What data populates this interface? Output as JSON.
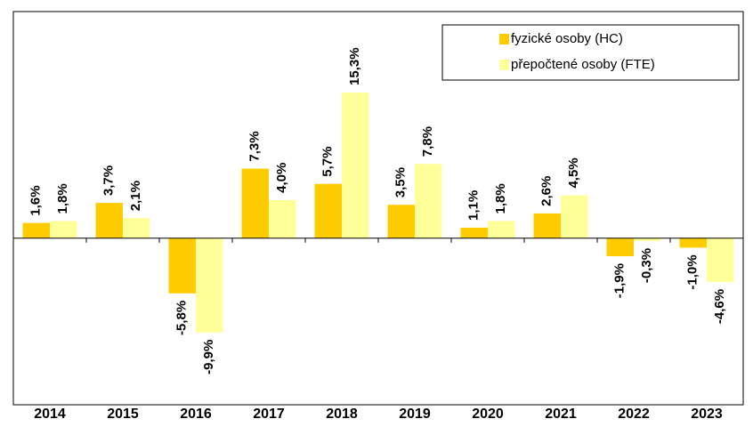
{
  "chart_data": {
    "type": "bar",
    "categories": [
      "2014",
      "2015",
      "2016",
      "2017",
      "2018",
      "2019",
      "2020",
      "2021",
      "2022",
      "2023"
    ],
    "series": [
      {
        "name": "fyzické osoby (HC)",
        "color": "#ffcc00",
        "values": [
          1.6,
          3.7,
          -5.8,
          7.3,
          5.7,
          3.5,
          1.1,
          2.6,
          -1.9,
          -1.0
        ],
        "value_labels": [
          "1,6%",
          "3,7%",
          "-5,8%",
          "7,3%",
          "5,7%",
          "3,5%",
          "1,1%",
          "2,6%",
          "-1,9%",
          "-1,0%"
        ]
      },
      {
        "name": "přepočtené osoby (FTE)",
        "color": "#ffff99",
        "values": [
          1.8,
          2.1,
          -9.9,
          4.0,
          15.3,
          7.8,
          1.8,
          4.5,
          -0.3,
          -4.6
        ],
        "value_labels": [
          "1,8%",
          "2,1%",
          "-9,9%",
          "4,0%",
          "15,3%",
          "7,8%",
          "1,8%",
          "4,5%",
          "-0,3%",
          "-4,6%"
        ]
      }
    ],
    "ylim": [
      -17.5,
      23.8
    ],
    "legend": "upper right"
  }
}
